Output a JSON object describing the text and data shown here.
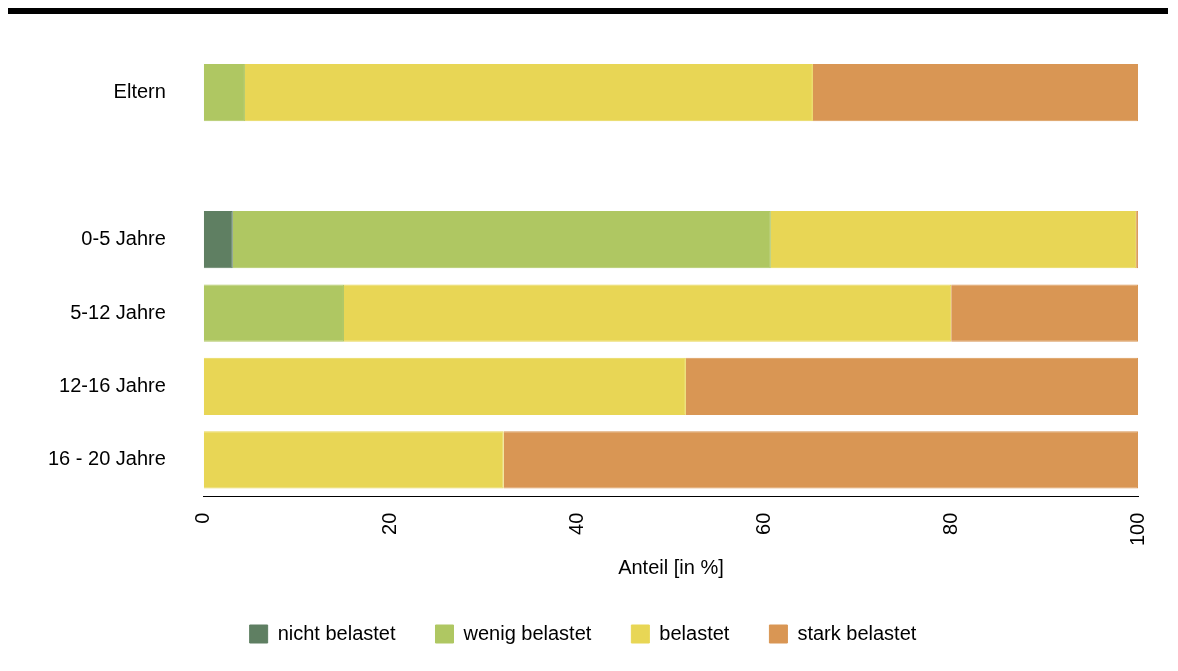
{
  "chart_data": {
    "type": "bar",
    "orientation": "horizontal",
    "stacked": true,
    "xlabel": "Anteil [in %]",
    "categories": [
      "Eltern",
      null,
      "0-5 Jahre",
      "5-12 Jahre",
      "12-16 Jahre",
      "16 - 20 Jahre"
    ],
    "series": [
      {
        "name": "nicht belastet",
        "color": "#5f7f62",
        "values": [
          0,
          null,
          3.1,
          0,
          0,
          0
        ]
      },
      {
        "name": "wenig belastet",
        "color": "#afc762",
        "values": [
          4.4,
          null,
          57.6,
          15.0,
          0,
          0
        ]
      },
      {
        "name": "belastet",
        "color": "#e8d655",
        "values": [
          60.8,
          null,
          39.1,
          65.0,
          51.6,
          32.1
        ]
      },
      {
        "name": "stark belastet",
        "color": "#d99654",
        "values": [
          34.8,
          null,
          0.2,
          20.0,
          48.4,
          67.9
        ]
      }
    ],
    "xlim": [
      0,
      100
    ],
    "xticks": [
      0,
      20,
      40,
      60,
      80,
      100
    ],
    "grid": false,
    "legend": "bottom"
  }
}
